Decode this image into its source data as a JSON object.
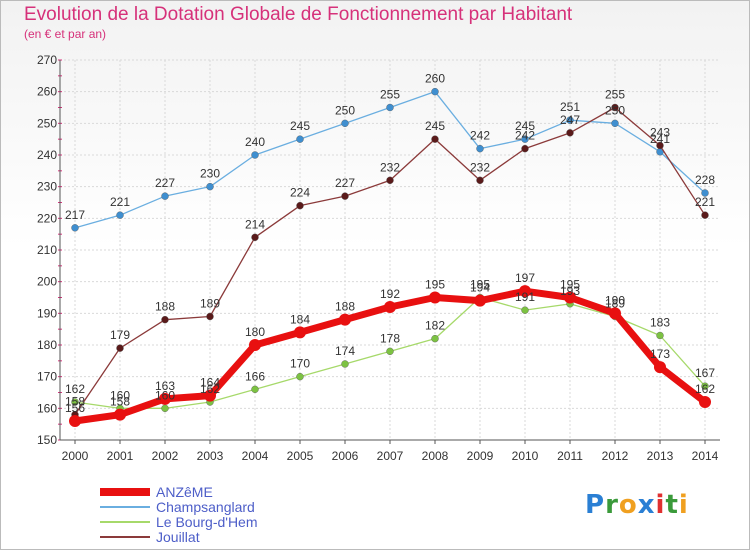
{
  "header": {
    "title": "Evolution de la Dotation Globale de Fonctionnement par Habitant",
    "subtitle": "(en € et par an)"
  },
  "logo": {
    "text": "Proxiti",
    "letters": [
      "P",
      "r",
      "o",
      "x",
      "i",
      "t",
      "i"
    ],
    "colors": [
      "#2a7fd4",
      "#3a9a3a",
      "#f0a020",
      "#2a7fd4",
      "#e03030",
      "#3a9a3a",
      "#f0a020"
    ]
  },
  "chart_data": {
    "type": "line",
    "x": [
      2000,
      2001,
      2002,
      2003,
      2004,
      2005,
      2006,
      2007,
      2008,
      2009,
      2010,
      2011,
      2012,
      2013,
      2014
    ],
    "ylim": [
      150,
      270
    ],
    "yticks": [
      150,
      160,
      170,
      180,
      190,
      200,
      210,
      220,
      230,
      240,
      250,
      260,
      270
    ],
    "grid": true,
    "legend_position": "bottom-left",
    "series": [
      {
        "name": "ANZêME",
        "color": "#e81010",
        "width": 7,
        "marker": "#e81010",
        "marker_r": 6,
        "values": [
          156,
          158,
          163,
          164,
          180,
          184,
          188,
          192,
          195,
          194,
          197,
          195,
          190,
          173,
          162
        ]
      },
      {
        "name": "Champsanglard",
        "color": "#6aaee0",
        "width": 1.3,
        "marker": "#3f8fd0",
        "marker_r": 3.5,
        "values": [
          217,
          221,
          227,
          230,
          240,
          245,
          250,
          255,
          260,
          242,
          245,
          251,
          250,
          241,
          228
        ]
      },
      {
        "name": "Le Bourg-d'Hem",
        "color": "#a6d96a",
        "width": 1.3,
        "marker": "#7cc242",
        "marker_r": 3.5,
        "values": [
          162,
          160,
          160,
          162,
          166,
          170,
          174,
          178,
          182,
          195,
          191,
          193,
          189,
          183,
          167
        ]
      },
      {
        "name": "Jouillat",
        "color": "#8b3a3a",
        "width": 1.3,
        "marker": "#5a1a1a",
        "marker_r": 3.5,
        "values": [
          158,
          179,
          188,
          189,
          214,
          224,
          227,
          232,
          245,
          232,
          242,
          247,
          255,
          243,
          221
        ]
      }
    ]
  }
}
